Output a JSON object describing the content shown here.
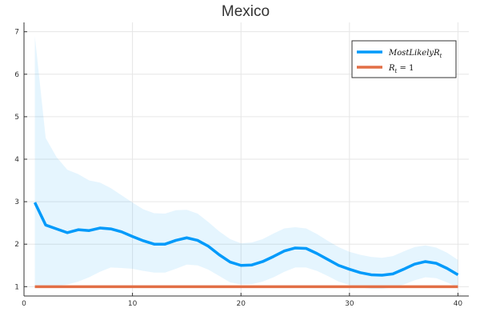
{
  "chart_data": {
    "type": "line",
    "title": "Mexico",
    "xlabel": "",
    "ylabel": "",
    "xlim": [
      0,
      41
    ],
    "ylim": [
      0.78,
      7.22
    ],
    "xticks": [
      0,
      10,
      20,
      30,
      40
    ],
    "yticks": [
      1,
      2,
      3,
      4,
      5,
      6,
      7
    ],
    "grid": true,
    "legend_position": "top-right",
    "x": [
      1,
      2,
      3,
      4,
      5,
      6,
      7,
      8,
      9,
      10,
      11,
      12,
      13,
      14,
      15,
      16,
      17,
      18,
      19,
      20,
      21,
      22,
      23,
      24,
      25,
      26,
      27,
      28,
      29,
      30,
      31,
      32,
      33,
      34,
      35,
      36,
      37,
      38,
      39,
      40
    ],
    "series": [
      {
        "name": "Most Likely R_t",
        "label_main": "MostLikelyR",
        "label_sub": "t",
        "color": "#009AFA",
        "values": [
          2.98,
          2.45,
          2.36,
          2.27,
          2.34,
          2.32,
          2.38,
          2.36,
          2.29,
          2.18,
          2.08,
          2.0,
          2.0,
          2.09,
          2.15,
          2.09,
          1.95,
          1.75,
          1.58,
          1.5,
          1.51,
          1.59,
          1.71,
          1.84,
          1.91,
          1.9,
          1.78,
          1.64,
          1.5,
          1.41,
          1.33,
          1.28,
          1.27,
          1.3,
          1.41,
          1.53,
          1.59,
          1.55,
          1.43,
          1.28
        ],
        "lower": [
          1.02,
          1.02,
          1.02,
          1.05,
          1.12,
          1.22,
          1.35,
          1.45,
          1.44,
          1.42,
          1.37,
          1.33,
          1.33,
          1.42,
          1.52,
          1.5,
          1.4,
          1.25,
          1.1,
          1.05,
          1.06,
          1.12,
          1.22,
          1.35,
          1.45,
          1.45,
          1.37,
          1.25,
          1.12,
          1.04,
          0.98,
          0.95,
          0.95,
          0.98,
          1.05,
          1.15,
          1.22,
          1.2,
          1.1,
          0.98
        ],
        "upper": [
          6.9,
          4.5,
          4.05,
          3.75,
          3.65,
          3.5,
          3.45,
          3.32,
          3.15,
          2.98,
          2.82,
          2.73,
          2.72,
          2.8,
          2.81,
          2.72,
          2.52,
          2.3,
          2.12,
          2.02,
          2.04,
          2.12,
          2.25,
          2.37,
          2.4,
          2.37,
          2.24,
          2.08,
          1.93,
          1.82,
          1.75,
          1.7,
          1.68,
          1.72,
          1.83,
          1.93,
          1.97,
          1.92,
          1.8,
          1.63
        ]
      },
      {
        "name": "R_t = 1",
        "label_main": "R",
        "label_sub": "t",
        "label_tail": " = 1",
        "color": "#E26F46",
        "values": [
          1,
          1,
          1,
          1,
          1,
          1,
          1,
          1,
          1,
          1,
          1,
          1,
          1,
          1,
          1,
          1,
          1,
          1,
          1,
          1,
          1,
          1,
          1,
          1,
          1,
          1,
          1,
          1,
          1,
          1,
          1,
          1,
          1,
          1,
          1,
          1,
          1,
          1,
          1,
          1
        ]
      }
    ],
    "band_color": "#009AFA",
    "band_opacity": 0.1
  }
}
